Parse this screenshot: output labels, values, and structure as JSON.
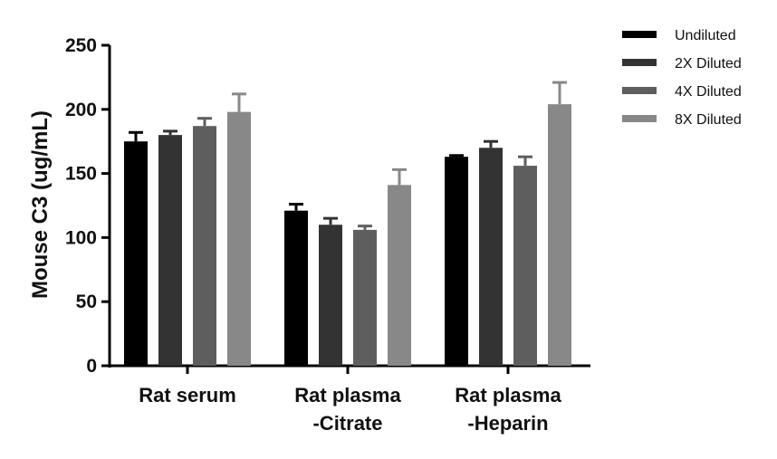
{
  "chart_data": {
    "type": "bar",
    "title": "",
    "xlabel": "",
    "ylabel": "Mouse C3 (ug/mL)",
    "ylim": [
      0,
      250
    ],
    "yticks": [
      0,
      50,
      100,
      150,
      200,
      250
    ],
    "grid": false,
    "legend_position": "top-right",
    "categories": [
      [
        "Rat serum"
      ],
      [
        "Rat plasma",
        "-Citrate"
      ],
      [
        "Rat plasma",
        "-Heparin"
      ]
    ],
    "series": [
      {
        "name": "Undiluted",
        "color": "#000000",
        "values": [
          175,
          121,
          163
        ],
        "errors": [
          7,
          5,
          1
        ]
      },
      {
        "name": "2X Diluted",
        "color": "#333333",
        "values": [
          180,
          110,
          170
        ],
        "errors": [
          3,
          5,
          5
        ]
      },
      {
        "name": "4X Diluted",
        "color": "#5e5e5e",
        "values": [
          187,
          106,
          156
        ],
        "errors": [
          6,
          3,
          7
        ]
      },
      {
        "name": "8X Diluted",
        "color": "#888888",
        "values": [
          198,
          141,
          204
        ],
        "errors": [
          14,
          12,
          17
        ]
      }
    ]
  }
}
